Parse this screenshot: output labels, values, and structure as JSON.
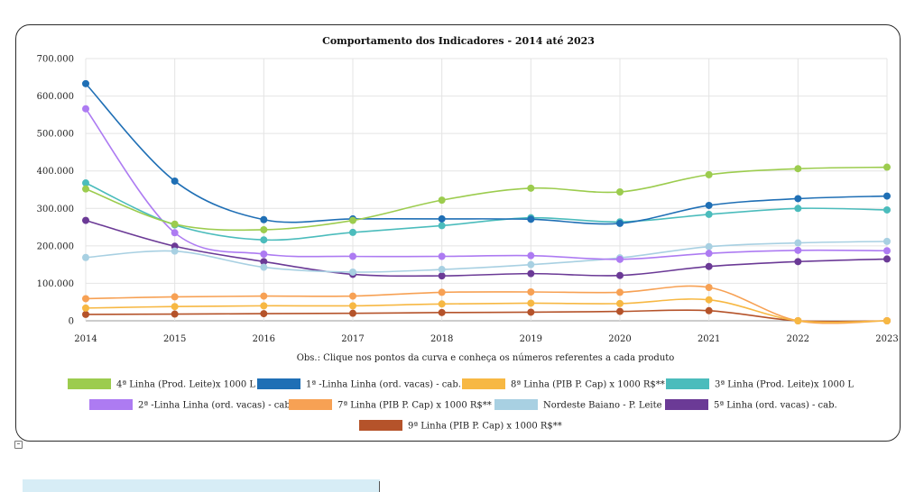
{
  "chart_data": {
    "type": "line",
    "title": "Comportamento dos Indicadores - 2014 até 2023",
    "note": "Obs.: Clique nos pontos da curva e conheça os números referentes a cada produto",
    "categories": [
      "2014",
      "2015",
      "2016",
      "2017",
      "2018",
      "2019",
      "2020",
      "2021",
      "2022",
      "2023"
    ],
    "ylim": [
      0,
      700000
    ],
    "yticks": [
      0,
      100000,
      200000,
      300000,
      400000,
      500000,
      600000,
      700000
    ],
    "ytick_labels": [
      "0",
      "100.000",
      "200.000",
      "300.000",
      "400.000",
      "500.000",
      "600.000",
      "700.000"
    ],
    "grid": true,
    "legend_position": "bottom",
    "series": [
      {
        "name": "4ª Linha  (Prod. Leite)x 1000 L",
        "color": "#9ccc4e",
        "values": [
          352000,
          258000,
          243000,
          268000,
          322000,
          354000,
          344000,
          390000,
          406000,
          410000
        ]
      },
      {
        "name": "1ª -Linha Linha (ord. vacas) - cab.",
        "color": "#1f6fb5",
        "values": [
          633000,
          373000,
          270000,
          272000,
          272000,
          271000,
          260000,
          308000,
          326000,
          333000
        ]
      },
      {
        "name": "8ª Linha (PIB P. Cap) x 1000 R$**",
        "color": "#f7b843",
        "values": [
          34000,
          38000,
          40000,
          40000,
          45000,
          47000,
          46000,
          56000,
          0,
          0
        ]
      },
      {
        "name": "3ª Linha  (Prod. Leite)x 1000 L",
        "color": "#4bbcbc",
        "values": [
          368000,
          256000,
          216000,
          236000,
          254000,
          275000,
          264000,
          284000,
          300000,
          296000
        ]
      },
      {
        "name": "2ª -Linha Linha (ord. vacas) - cab.",
        "color": "#ad7bf2",
        "values": [
          566000,
          235000,
          178000,
          172000,
          172000,
          174000,
          164000,
          180000,
          188000,
          187000
        ]
      },
      {
        "name": "7ª Linha (PIB P. Cap) x 1000 R$**",
        "color": "#f7a154",
        "values": [
          59000,
          64000,
          66000,
          66000,
          76000,
          77000,
          76000,
          89000,
          0,
          0
        ]
      },
      {
        "name": "Nordeste Baiano - P. Leite",
        "color": "#a8d0e2",
        "values": [
          169000,
          186000,
          143000,
          130000,
          137000,
          150000,
          168000,
          198000,
          208000,
          212000
        ]
      },
      {
        "name": "5ª Linha (ord. vacas) - cab.",
        "color": "#6b3a96",
        "values": [
          268000,
          199000,
          158000,
          124000,
          120000,
          126000,
          121000,
          145000,
          158000,
          165000
        ]
      },
      {
        "name": "9ª Linha (PIB P. Cap) x 1000 R$**",
        "color": "#b5532a",
        "values": [
          17000,
          18000,
          19000,
          20000,
          22000,
          23000,
          25000,
          27000,
          0,
          0
        ]
      }
    ]
  }
}
